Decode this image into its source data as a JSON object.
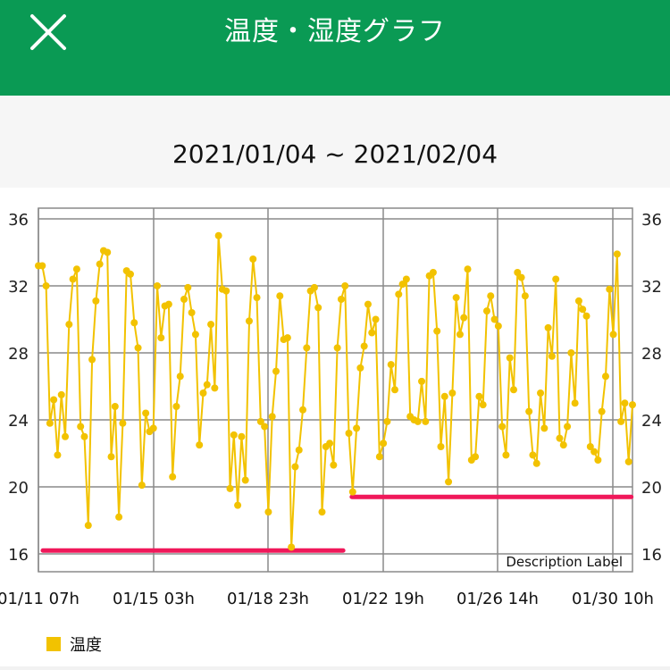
{
  "header": {
    "title": "温度・湿度グラフ",
    "close_icon": "close-icon"
  },
  "date_range": "2021/01/04 ~ 2021/02/04",
  "colors": {
    "header_bg": "#0a9a54",
    "line": "#f2c200",
    "limit_line": "#f0185a",
    "grid": "#8a8a8a"
  },
  "legend": {
    "label": "温度"
  },
  "chart_data": {
    "type": "line",
    "description_label": "Description Label",
    "x_tick_labels": [
      "01/11 07h",
      "01/15 03h",
      "01/18 23h",
      "01/22 19h",
      "01/26 14h",
      "01/30 10h"
    ],
    "y_ticks_left": [
      16,
      20,
      24,
      28,
      32,
      36
    ],
    "y_ticks_right": [
      16,
      20,
      24,
      28,
      32,
      36
    ],
    "ylim": [
      16,
      36
    ],
    "grid": true,
    "legend_placement": "bottom-left",
    "series": [
      {
        "name": "温度",
        "values": [
          33.2,
          33.2,
          32.0,
          23.8,
          25.2,
          21.9,
          25.5,
          23.0,
          29.7,
          32.4,
          33.0,
          23.6,
          23.0,
          17.7,
          27.6,
          31.1,
          33.3,
          34.1,
          34.0,
          21.8,
          24.8,
          18.2,
          23.8,
          32.9,
          32.7,
          29.8,
          28.3,
          20.1,
          24.4,
          23.3,
          23.5,
          32.0,
          28.9,
          30.8,
          30.9,
          20.6,
          24.8,
          26.6,
          31.2,
          31.9,
          30.4,
          29.1,
          22.5,
          25.6,
          26.1,
          29.7,
          25.9,
          35.0,
          31.8,
          31.7,
          19.9,
          23.1,
          18.9,
          23.0,
          20.4,
          29.9,
          33.6,
          31.3,
          23.9,
          23.6,
          18.5,
          24.2,
          26.9,
          31.4,
          28.8,
          28.9,
          16.4,
          21.2,
          22.2,
          24.6,
          28.3,
          31.7,
          31.9,
          30.7,
          18.5,
          22.4,
          22.6,
          21.3,
          28.3,
          31.2,
          32.0,
          23.2,
          19.7,
          23.5,
          27.1,
          28.4,
          30.9,
          29.2,
          30.0,
          21.8,
          22.6,
          23.9,
          27.3,
          25.8,
          31.5,
          32.1,
          32.4,
          24.2,
          24.0,
          23.9,
          26.3,
          23.9,
          32.6,
          32.8,
          29.3,
          22.4,
          25.4,
          20.3,
          25.6,
          31.3,
          29.1,
          30.1,
          33.0,
          21.6,
          21.8,
          25.4,
          24.9,
          30.5,
          31.4,
          30.0,
          29.6,
          23.6,
          21.9,
          27.7,
          25.8,
          32.8,
          32.5,
          31.4,
          24.5,
          21.9,
          21.4,
          25.6,
          23.5,
          29.5,
          27.8,
          32.4,
          22.9,
          22.5,
          23.6,
          28.0,
          25.0,
          31.1,
          30.6,
          30.2,
          22.4,
          22.1,
          21.6,
          24.5,
          26.6,
          31.8,
          29.1,
          33.9,
          23.9,
          25.0,
          21.5,
          24.9
        ]
      }
    ],
    "limit_lines": [
      {
        "value": 16.2,
        "from": 0.0,
        "to": 0.513
      },
      {
        "value": 19.4,
        "from": 0.524,
        "to": 0.998
      }
    ]
  }
}
